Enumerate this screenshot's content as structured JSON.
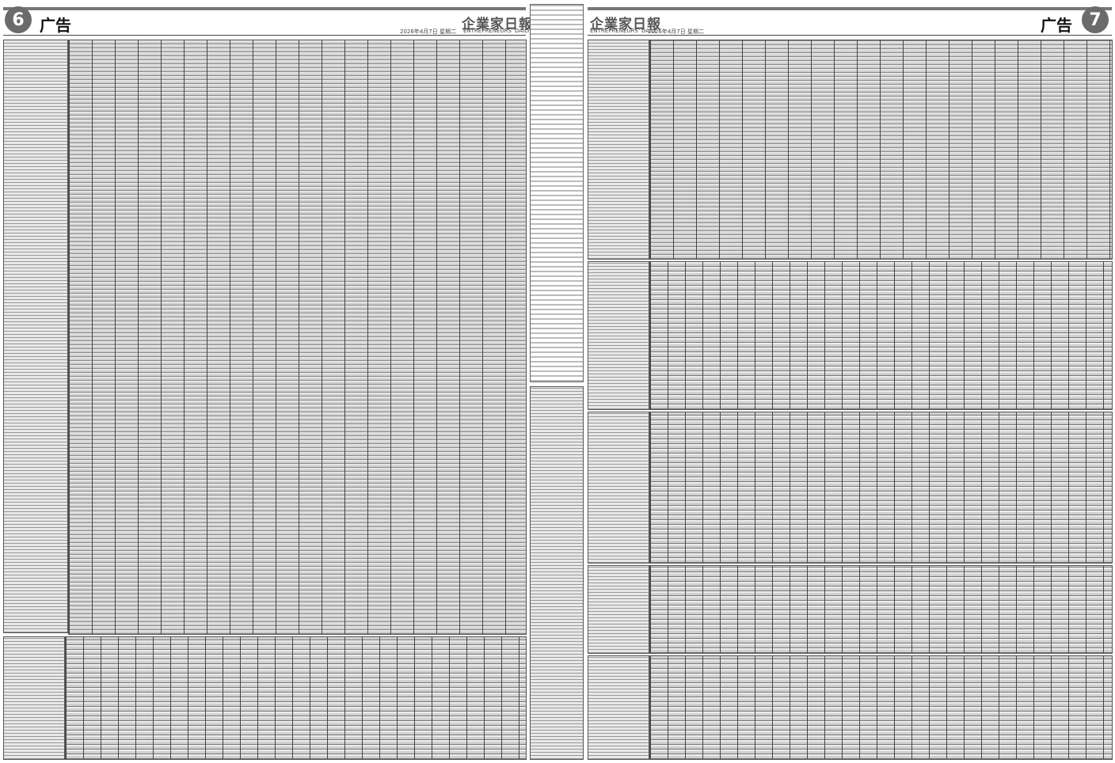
{
  "left_page": {
    "page_number": "6",
    "section": "广告",
    "masthead": "企業家日報",
    "date": "2026年4月7日 星期二",
    "masthead_en": "ENTREPRENEURS' DAILY"
  },
  "right_page": {
    "page_number": "7",
    "section": "广告",
    "masthead": "企業家日報",
    "date": "2026年4月7日 星期二",
    "masthead_en": "ENTREPRENEURS' DAILY"
  }
}
